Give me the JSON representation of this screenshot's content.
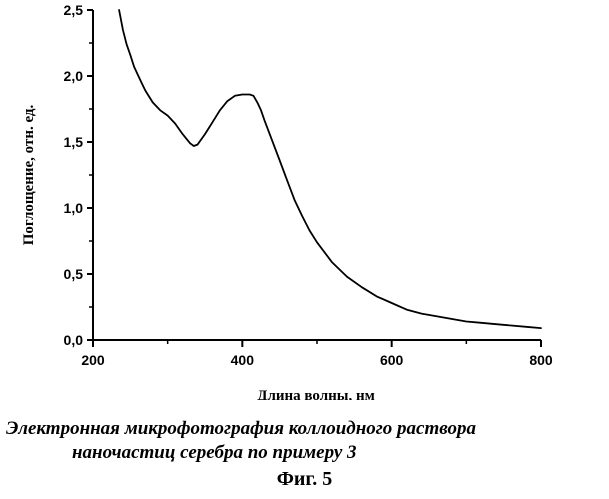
{
  "chart_data": {
    "type": "line",
    "title": "",
    "xlabel": "Длина волны, нм",
    "ylabel": "Поглощение, отн. ед.",
    "xlim": [
      200,
      800
    ],
    "ylim": [
      0.0,
      2.5
    ],
    "x_ticks": [
      {
        "value": 200,
        "label": "200"
      },
      {
        "value": 400,
        "label": "400"
      },
      {
        "value": 600,
        "label": "600"
      },
      {
        "value": 800,
        "label": "800"
      }
    ],
    "y_ticks": [
      {
        "value": 0.0,
        "label": "0,0"
      },
      {
        "value": 0.5,
        "label": "0,5"
      },
      {
        "value": 1.0,
        "label": "1,0"
      },
      {
        "value": 1.5,
        "label": "1,5"
      },
      {
        "value": 2.0,
        "label": "2,0"
      },
      {
        "value": 2.5,
        "label": "2,5"
      }
    ],
    "grid": false,
    "legend": "none",
    "series": [
      {
        "color": "#000000",
        "x": [
          235,
          240,
          245,
          250,
          255,
          260,
          265,
          270,
          280,
          290,
          300,
          310,
          320,
          330,
          335,
          340,
          350,
          360,
          370,
          380,
          390,
          400,
          410,
          415,
          420,
          425,
          430,
          440,
          450,
          460,
          470,
          480,
          490,
          500,
          520,
          540,
          560,
          580,
          600,
          620,
          640,
          660,
          680,
          700,
          720,
          740,
          760,
          780,
          800
        ],
        "y": [
          2.5,
          2.35,
          2.24,
          2.16,
          2.07,
          2.01,
          1.95,
          1.89,
          1.8,
          1.74,
          1.7,
          1.64,
          1.56,
          1.49,
          1.47,
          1.48,
          1.56,
          1.65,
          1.74,
          1.81,
          1.85,
          1.86,
          1.86,
          1.85,
          1.8,
          1.74,
          1.66,
          1.51,
          1.36,
          1.21,
          1.06,
          0.94,
          0.83,
          0.74,
          0.59,
          0.48,
          0.4,
          0.33,
          0.28,
          0.23,
          0.2,
          0.18,
          0.16,
          0.14,
          0.13,
          0.12,
          0.11,
          0.1,
          0.09
        ]
      }
    ]
  },
  "caption": {
    "line1": "Электронная микрофотография коллоидного раствора",
    "line2": "наночастиц серебра по примеру 3"
  },
  "figure_label": "Фиг. 5"
}
